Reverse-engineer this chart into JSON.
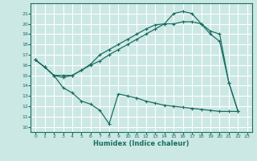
{
  "xlabel": "Humidex (Indice chaleur)",
  "bg_color": "#cce8e4",
  "line_color": "#1a6e64",
  "grid_color": "#ffffff",
  "xlim": [
    -0.5,
    23.5
  ],
  "ylim": [
    9.5,
    22.0
  ],
  "xticks": [
    0,
    1,
    2,
    3,
    4,
    5,
    6,
    7,
    8,
    9,
    10,
    11,
    12,
    13,
    14,
    15,
    16,
    17,
    18,
    19,
    20,
    21,
    22,
    23
  ],
  "yticks": [
    10,
    11,
    12,
    13,
    14,
    15,
    16,
    17,
    18,
    19,
    20,
    21
  ],
  "line1_x": [
    0,
    1,
    2,
    3,
    4,
    5,
    6,
    7,
    8,
    9,
    10,
    11,
    12,
    13,
    14,
    15,
    16,
    17,
    18,
    19,
    20,
    21,
    22
  ],
  "line1_y": [
    16.5,
    15.8,
    15.0,
    15.0,
    15.0,
    15.5,
    16.0,
    16.4,
    17.0,
    17.5,
    18.0,
    18.5,
    19.0,
    19.5,
    20.0,
    20.0,
    20.2,
    20.2,
    20.0,
    19.3,
    19.0,
    14.3,
    11.5
  ],
  "line2_x": [
    0,
    1,
    2,
    3,
    4,
    5,
    6,
    7,
    8,
    9,
    10,
    11,
    12,
    13,
    14,
    15,
    16,
    17,
    18,
    19,
    20,
    21,
    22
  ],
  "line2_y": [
    16.5,
    15.8,
    15.0,
    13.8,
    13.3,
    12.5,
    12.2,
    11.6,
    10.3,
    13.2,
    13.0,
    12.8,
    12.5,
    12.3,
    12.1,
    12.0,
    11.9,
    11.8,
    11.7,
    11.6,
    11.5,
    11.5,
    11.5
  ],
  "line3_x": [
    0,
    1,
    2,
    3,
    4,
    5,
    6,
    7,
    8,
    9,
    10,
    11,
    12,
    13,
    14,
    15,
    16,
    17,
    18,
    19,
    20,
    21,
    22
  ],
  "line3_y": [
    16.5,
    15.8,
    15.0,
    14.8,
    15.0,
    15.5,
    16.1,
    17.0,
    17.5,
    18.0,
    18.5,
    19.0,
    19.5,
    19.9,
    20.0,
    21.0,
    21.2,
    21.0,
    20.0,
    19.0,
    18.3,
    14.3,
    11.5
  ]
}
